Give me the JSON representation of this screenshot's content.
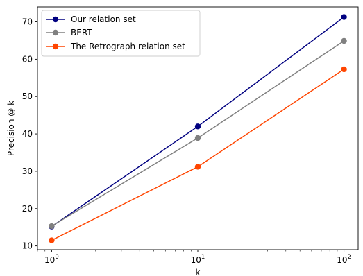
{
  "chart_data": {
    "type": "line",
    "x": [
      1,
      10,
      100
    ],
    "xscale": "log",
    "xlim": [
      0.8,
      125
    ],
    "ylim": [
      9,
      74
    ],
    "xlabel": "k",
    "ylabel": "Precision @ k",
    "x_tick_labels": [
      {
        "base": "10",
        "exp": "0"
      },
      {
        "base": "10",
        "exp": "1"
      },
      {
        "base": "10",
        "exp": "2"
      }
    ],
    "y_ticks": [
      "10",
      "20",
      "30",
      "40",
      "50",
      "60",
      "70"
    ],
    "legend_position": "top-left",
    "grid": false,
    "series": [
      {
        "name": "Our relation set",
        "color": "#000080",
        "values": [
          15.2,
          42.0,
          71.3
        ]
      },
      {
        "name": "BERT",
        "color": "#808080",
        "values": [
          15.3,
          38.9,
          64.9
        ]
      },
      {
        "name": "The Retrograph relation set",
        "color": "#FF4500",
        "values": [
          11.5,
          31.2,
          57.3
        ]
      }
    ]
  }
}
